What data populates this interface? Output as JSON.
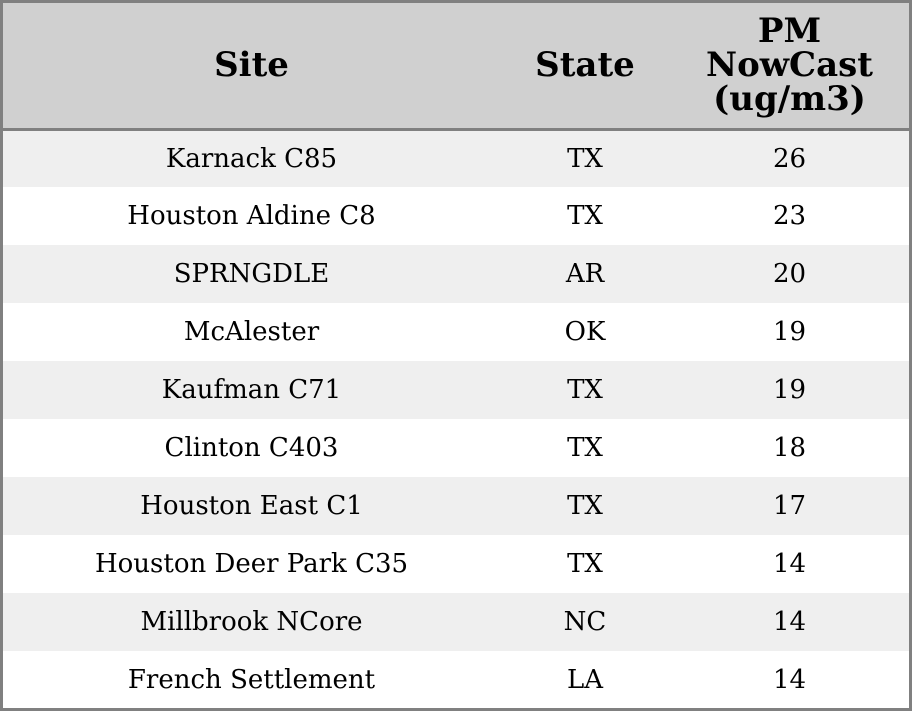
{
  "chart_data": {
    "type": "table",
    "columns": [
      "Site",
      "State",
      "PM NowCast (ug/m3)"
    ],
    "header_lines": [
      [
        "Site"
      ],
      [
        "State"
      ],
      [
        "PM",
        "NowCast",
        "(ug/m3)"
      ]
    ],
    "rows": [
      {
        "site": "Karnack C85",
        "state": "TX",
        "pm": "26"
      },
      {
        "site": "Houston Aldine C8",
        "state": "TX",
        "pm": "23"
      },
      {
        "site": "SPRNGDLE",
        "state": "AR",
        "pm": "20"
      },
      {
        "site": "McAlester",
        "state": "OK",
        "pm": "19"
      },
      {
        "site": "Kaufman C71",
        "state": "TX",
        "pm": "19"
      },
      {
        "site": "Clinton C403",
        "state": "TX",
        "pm": "18"
      },
      {
        "site": "Houston East C1",
        "state": "TX",
        "pm": "17"
      },
      {
        "site": "Houston Deer Park C35",
        "state": "TX",
        "pm": "14"
      },
      {
        "site": "Millbrook NCore",
        "state": "NC",
        "pm": "14"
      },
      {
        "site": "French Settlement",
        "state": "LA",
        "pm": "14"
      }
    ]
  },
  "colors": {
    "header_bg": "#d0d0d0",
    "stripe_bg": "#efefef",
    "row_bg": "#ffffff",
    "border": "#808080"
  }
}
